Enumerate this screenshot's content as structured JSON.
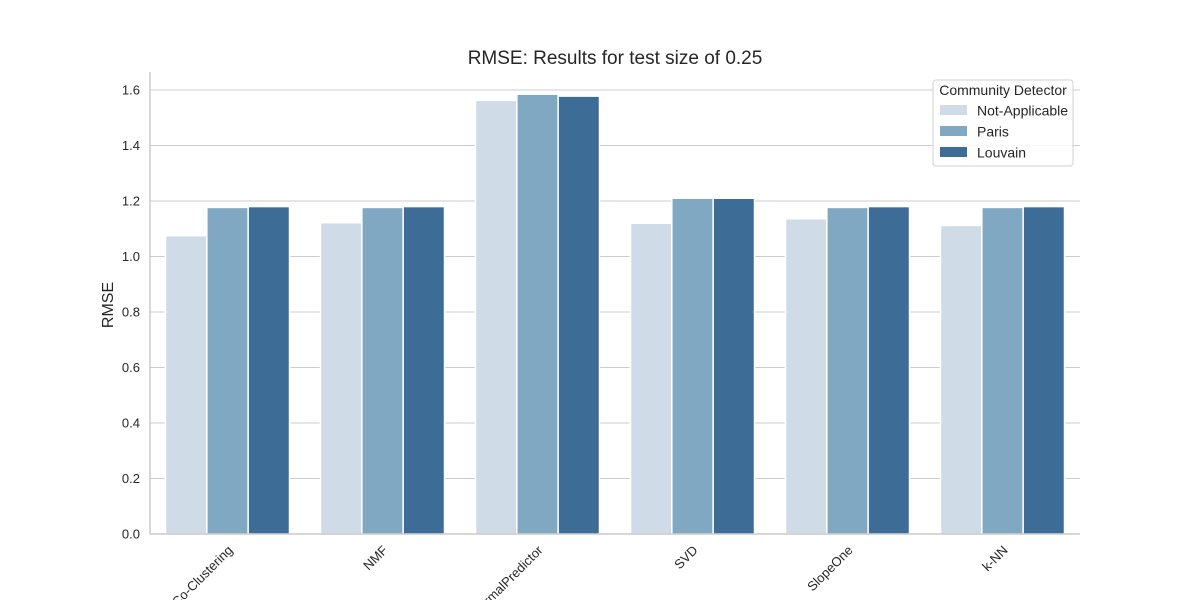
{
  "chart_data": {
    "type": "bar",
    "title": "RMSE: Results for test size of 0.25",
    "xlabel": "",
    "ylabel": "RMSE",
    "ylim": [
      0,
      1.665
    ],
    "yticks": [
      0.0,
      0.2,
      0.4,
      0.6,
      0.8,
      1.0,
      1.2,
      1.4,
      1.6
    ],
    "ytick_labels": [
      "0.0",
      "0.2",
      "0.4",
      "0.6",
      "0.8",
      "1.0",
      "1.2",
      "1.4",
      "1.6"
    ],
    "grid": "horizontal",
    "legend_placement": "top-right",
    "legend_title": "Community Detector",
    "categories": [
      "Co-Clustering",
      "NMF",
      "NormalPredictor",
      "SVD",
      "SlopeOne",
      "k-NN"
    ],
    "series": [
      {
        "name": "Not-Applicable",
        "color": "#cfdce8",
        "values": [
          1.075,
          1.122,
          1.563,
          1.12,
          1.136,
          1.112
        ]
      },
      {
        "name": "Paris",
        "color": "#81a8c2",
        "values": [
          1.177,
          1.177,
          1.585,
          1.21,
          1.177,
          1.177
        ]
      },
      {
        "name": "Louvain",
        "color": "#3d6c97",
        "values": [
          1.18,
          1.18,
          1.578,
          1.21,
          1.18,
          1.18
        ]
      }
    ]
  }
}
